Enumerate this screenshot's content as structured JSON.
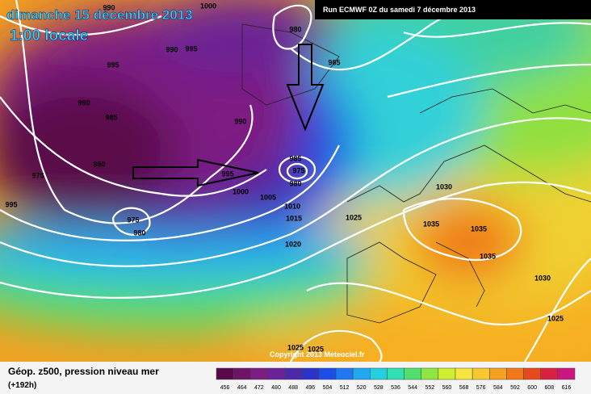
{
  "header": {
    "title": "dimanche 15 décembre 2013",
    "subtitle": "1:00 locale",
    "run": "Run ECMWF 0Z du samedi 7 décembre 2013"
  },
  "isobar_labels": [
    990,
    1000,
    980,
    990,
    995,
    995,
    985,
    990,
    985,
    990,
    980,
    975,
    985,
    975,
    980,
    995,
    1000,
    1005,
    1010,
    1015,
    995,
    975,
    980,
    1020,
    1025,
    1030,
    1035,
    1035,
    1035,
    1030,
    1025,
    1025,
    1025
  ],
  "copyright": "Copyright 2013 Meteociel.fr",
  "footer": {
    "title": "Géop. z500, pression niveau mer",
    "lead": "(+192h)"
  },
  "legend": {
    "labels": [
      456,
      464,
      472,
      480,
      488,
      496,
      504,
      512,
      520,
      528,
      536,
      544,
      552,
      560,
      568,
      576,
      584,
      592,
      600,
      608,
      616
    ],
    "colors": [
      "#5a0a4a",
      "#6e1466",
      "#7d1c82",
      "#6a2296",
      "#4a2aa8",
      "#2c34c8",
      "#1c4ee6",
      "#1f78f2",
      "#20a8f0",
      "#22d0e0",
      "#30e0b0",
      "#50e070",
      "#90e640",
      "#d0ee30",
      "#f6e640",
      "#f8c830",
      "#f6a020",
      "#f07818",
      "#e64a1c",
      "#d82040",
      "#c81880"
    ]
  }
}
